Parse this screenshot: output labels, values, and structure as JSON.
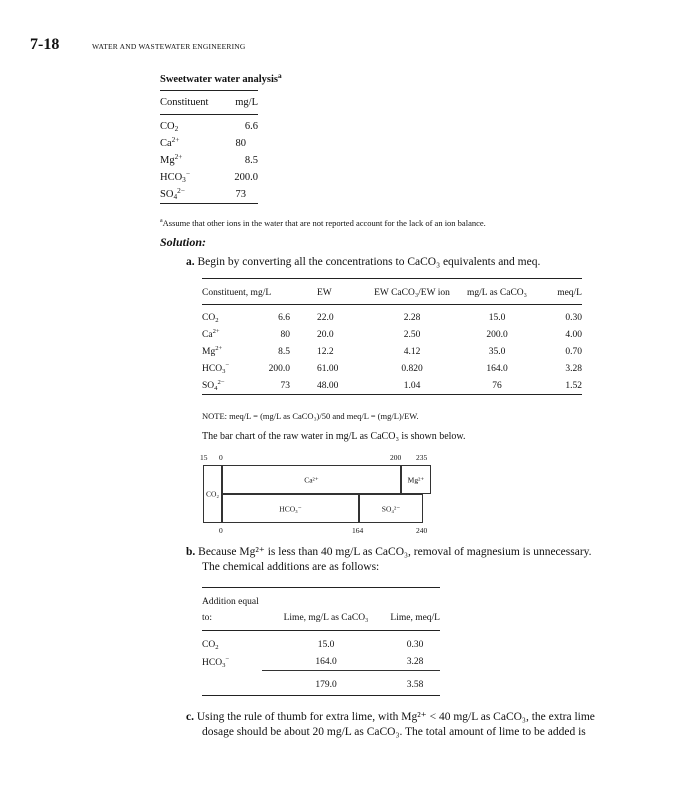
{
  "header": {
    "page_number": "7-18",
    "running_title": "WATER AND WASTEWATER ENGINEERING"
  },
  "analysis_table": {
    "caption": "Sweetwater water analysis",
    "caption_note": "a",
    "columns": [
      "Constituent",
      "mg/L"
    ],
    "rows": [
      {
        "base": "CO",
        "sub": "2",
        "sup": "",
        "value": "6.6"
      },
      {
        "base": "Ca",
        "sub": "",
        "sup": "2+",
        "value": "80"
      },
      {
        "base": "Mg",
        "sub": "",
        "sup": "2+",
        "value": "8.5"
      },
      {
        "base": "HCO",
        "sub": "3",
        "sup": "−",
        "value": "200.0"
      },
      {
        "base": "SO",
        "sub": "4",
        "sup": "2−",
        "value": "73"
      }
    ],
    "footnote_mark": "a",
    "footnote": "Assume that other ions in the water that are not reported account for the lack of an ion balance."
  },
  "solution_heading": "Solution:",
  "step_a": {
    "label": "a.",
    "text": "Begin by converting all the concentrations to CaCO₃ equivalents and meq."
  },
  "conversion_table": {
    "columns": [
      "Constituent, mg/L",
      "EW",
      "EW CaCO₃/EW ion",
      "mg/L as CaCO₃",
      "meq/L"
    ],
    "rows": [
      {
        "base": "CO",
        "sub": "2",
        "sup": "",
        "mg": "6.6",
        "ew": "22.0",
        "ratio": "2.28",
        "caco3": "15.0",
        "meq": "0.30"
      },
      {
        "base": "Ca",
        "sub": "",
        "sup": "2+",
        "mg": "80",
        "ew": "20.0",
        "ratio": "2.50",
        "caco3": "200.0",
        "meq": "4.00"
      },
      {
        "base": "Mg",
        "sub": "",
        "sup": "2+",
        "mg": "8.5",
        "ew": "12.2",
        "ratio": "4.12",
        "caco3": "35.0",
        "meq": "0.70"
      },
      {
        "base": "HCO",
        "sub": "3",
        "sup": "−",
        "mg": "200.0",
        "ew": "61.00",
        "ratio": "0.820",
        "caco3": "164.0",
        "meq": "3.28"
      },
      {
        "base": "SO",
        "sub": "4",
        "sup": "2−",
        "mg": "73",
        "ew": "48.00",
        "ratio": "1.04",
        "caco3": "76",
        "meq": "1.52"
      }
    ],
    "note": "NOTE: meq/L = (mg/L as CaCO₃)/50 and meq/L = (mg/L)/EW."
  },
  "bar_chart_intro": "The bar chart of the raw water in mg/L as CaCO₃ is shown below.",
  "bar_chart": {
    "top_ticks": [
      "15",
      "0",
      "200",
      "235"
    ],
    "bottom_ticks": [
      "0",
      "164",
      "240"
    ],
    "labels": {
      "co2": "CO₂",
      "ca": "Ca²⁺",
      "mg": "Mg²⁺",
      "hco3": "HCO₃⁻",
      "so4": "SO₄²⁻"
    }
  },
  "step_b": {
    "label": "b.",
    "text1": "Because Mg²⁺ is less than 40 mg/L as CaCO₃, removal of magnesium is unnecessary.",
    "text2": "The chemical additions are as follows:"
  },
  "lime_table": {
    "columns": [
      "Addition equal to:",
      "Lime, mg/L as CaCO₃",
      "Lime, meq/L"
    ],
    "rows": [
      {
        "base": "CO",
        "sub": "2",
        "sup": "",
        "caco3": "15.0",
        "meq": "0.30"
      },
      {
        "base": "HCO",
        "sub": "3",
        "sup": "−",
        "caco3": "164.0",
        "meq": "3.28"
      }
    ],
    "total": {
      "caco3": "179.0",
      "meq": "3.58"
    }
  },
  "step_c": {
    "label": "c.",
    "text1": "Using the rule of thumb for extra lime, with Mg²⁺ < 40 mg/L as CaCO₃, the extra lime",
    "text2": "dosage should be about 20 mg/L as CaCO₃. The total amount of lime to be added is"
  }
}
